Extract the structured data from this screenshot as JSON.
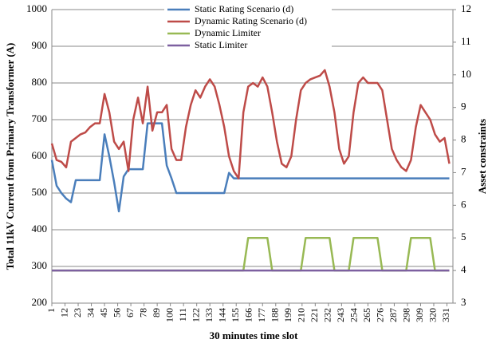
{
  "chart_data": {
    "type": "line",
    "xlabel": "30 minutes time slot",
    "ylabel": "Total 11kV Current from Primary Transformer (A)",
    "y2label": "Asset constraints",
    "x": [
      1,
      5,
      9,
      13,
      17,
      21,
      25,
      29,
      33,
      37,
      41,
      45,
      49,
      53,
      57,
      61,
      65,
      69,
      73,
      77,
      81,
      85,
      89,
      93,
      97,
      101,
      105,
      109,
      113,
      117,
      121,
      125,
      129,
      133,
      137,
      141,
      145,
      149,
      153,
      157,
      161,
      165,
      169,
      173,
      177,
      181,
      185,
      189,
      193,
      197,
      201,
      205,
      209,
      213,
      217,
      221,
      225,
      229,
      233,
      237,
      241,
      245,
      249,
      253,
      257,
      261,
      265,
      269,
      273,
      277,
      281,
      285,
      289,
      293,
      297,
      301,
      305,
      309,
      313,
      317,
      321,
      325,
      329,
      333
    ],
    "xlim": [
      1,
      336
    ],
    "xticks": [
      1,
      12,
      23,
      34,
      45,
      56,
      67,
      78,
      89,
      100,
      111,
      122,
      133,
      144,
      155,
      166,
      177,
      188,
      199,
      210,
      221,
      232,
      243,
      254,
      265,
      276,
      287,
      298,
      309,
      320,
      331
    ],
    "ylim": [
      200,
      1000
    ],
    "yticks": [
      200,
      300,
      400,
      500,
      600,
      700,
      800,
      900,
      1000
    ],
    "y2lim": [
      3,
      12
    ],
    "y2ticks": [
      3,
      4,
      5,
      6,
      7,
      8,
      9,
      10,
      11,
      12
    ],
    "grid": true,
    "legend": "top",
    "series": [
      {
        "name": "Static Rating Scenario (d)",
        "color": "#4a7ebb",
        "values": [
          590,
          520,
          500,
          485,
          475,
          535,
          535,
          535,
          535,
          535,
          535,
          660,
          600,
          530,
          450,
          545,
          565,
          565,
          565,
          565,
          690,
          690,
          690,
          690,
          575,
          540,
          500,
          500,
          500,
          500,
          500,
          500,
          500,
          500,
          500,
          500,
          500,
          555,
          540,
          540,
          540,
          540,
          540,
          540,
          540,
          540,
          540,
          540,
          540,
          540,
          540,
          540,
          540,
          540,
          540,
          540,
          540,
          540,
          540,
          540,
          540,
          540,
          540,
          540,
          540,
          540,
          540,
          540,
          540,
          540,
          540,
          540,
          540,
          540,
          540,
          540,
          540,
          540,
          540,
          540,
          540,
          540,
          540,
          540
        ]
      },
      {
        "name": "Dynamic Rating Scenario (d)",
        "color": "#be4b48",
        "values": [
          635,
          590,
          585,
          570,
          640,
          650,
          660,
          665,
          680,
          690,
          690,
          770,
          720,
          640,
          620,
          640,
          560,
          700,
          760,
          690,
          790,
          670,
          720,
          720,
          740,
          620,
          590,
          590,
          680,
          740,
          780,
          760,
          790,
          810,
          790,
          740,
          680,
          600,
          560,
          540,
          720,
          790,
          800,
          790,
          815,
          790,
          720,
          640,
          580,
          570,
          600,
          700,
          780,
          800,
          810,
          815,
          820,
          835,
          790,
          720,
          620,
          580,
          600,
          720,
          800,
          815,
          800,
          800,
          800,
          780,
          700,
          620,
          590,
          570,
          560,
          590,
          680,
          740,
          720,
          700,
          660,
          640,
          650,
          580
        ]
      },
      {
        "name": "Dynamic Limiter",
        "color": "#98b954",
        "axis": "y2",
        "values": [
          4,
          4,
          4,
          4,
          4,
          4,
          4,
          4,
          4,
          4,
          4,
          4,
          4,
          4,
          4,
          4,
          4,
          4,
          4,
          4,
          4,
          4,
          4,
          4,
          4,
          4,
          4,
          4,
          4,
          4,
          4,
          4,
          4,
          4,
          4,
          4,
          4,
          4,
          4,
          4,
          4,
          5,
          5,
          5,
          5,
          5,
          4,
          4,
          4,
          4,
          4,
          4,
          4,
          5,
          5,
          5,
          5,
          5,
          5,
          4,
          4,
          4,
          4,
          5,
          5,
          5,
          5,
          5,
          5,
          4,
          4,
          4,
          4,
          4,
          4,
          5,
          5,
          5,
          5,
          5,
          4,
          4,
          4,
          4
        ]
      },
      {
        "name": "Static Limiter",
        "color": "#7d60a0",
        "axis": "y2",
        "values": [
          4,
          4,
          4,
          4,
          4,
          4,
          4,
          4,
          4,
          4,
          4,
          4,
          4,
          4,
          4,
          4,
          4,
          4,
          4,
          4,
          4,
          4,
          4,
          4,
          4,
          4,
          4,
          4,
          4,
          4,
          4,
          4,
          4,
          4,
          4,
          4,
          4,
          4,
          4,
          4,
          4,
          4,
          4,
          4,
          4,
          4,
          4,
          4,
          4,
          4,
          4,
          4,
          4,
          4,
          4,
          4,
          4,
          4,
          4,
          4,
          4,
          4,
          4,
          4,
          4,
          4,
          4,
          4,
          4,
          4,
          4,
          4,
          4,
          4,
          4,
          4,
          4,
          4,
          4,
          4,
          4,
          4,
          4,
          4
        ]
      }
    ]
  }
}
